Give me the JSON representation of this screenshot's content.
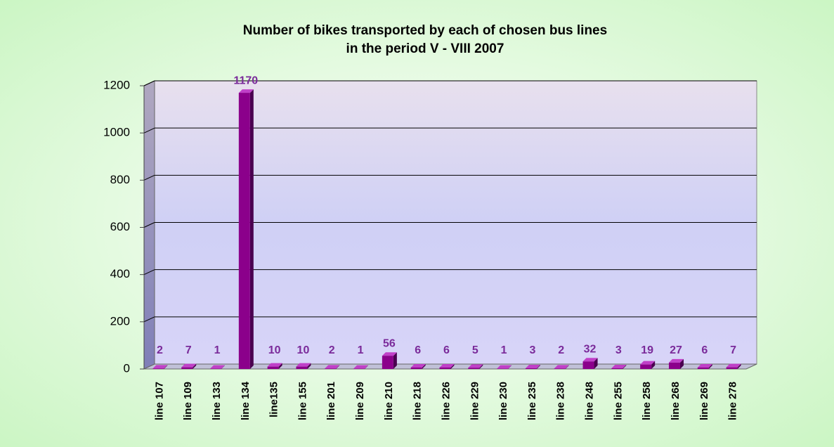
{
  "chart_data": {
    "type": "bar3d",
    "title": [
      "Number of bikes transported by each of chosen bus lines",
      "in the period V - VIII 2007"
    ],
    "categories": [
      "line 107",
      "line 109",
      "line 133",
      "line 134",
      "line135",
      "line 155",
      "line 201",
      "line 209",
      "line 210",
      "line 218",
      "line 226",
      "line 229",
      "line 230",
      "line 235",
      "line 238",
      "line 248",
      "line 255",
      "line 258",
      "line 268",
      "line 269",
      "line 278"
    ],
    "values": [
      2,
      7,
      1,
      1170,
      10,
      10,
      2,
      1,
      56,
      6,
      6,
      5,
      1,
      3,
      2,
      32,
      3,
      19,
      27,
      6,
      7
    ],
    "color": "#8b008b",
    "ylim": [
      0,
      1200
    ],
    "yticks": [
      0,
      200,
      400,
      600,
      800,
      1000,
      1200
    ],
    "grid": true
  }
}
